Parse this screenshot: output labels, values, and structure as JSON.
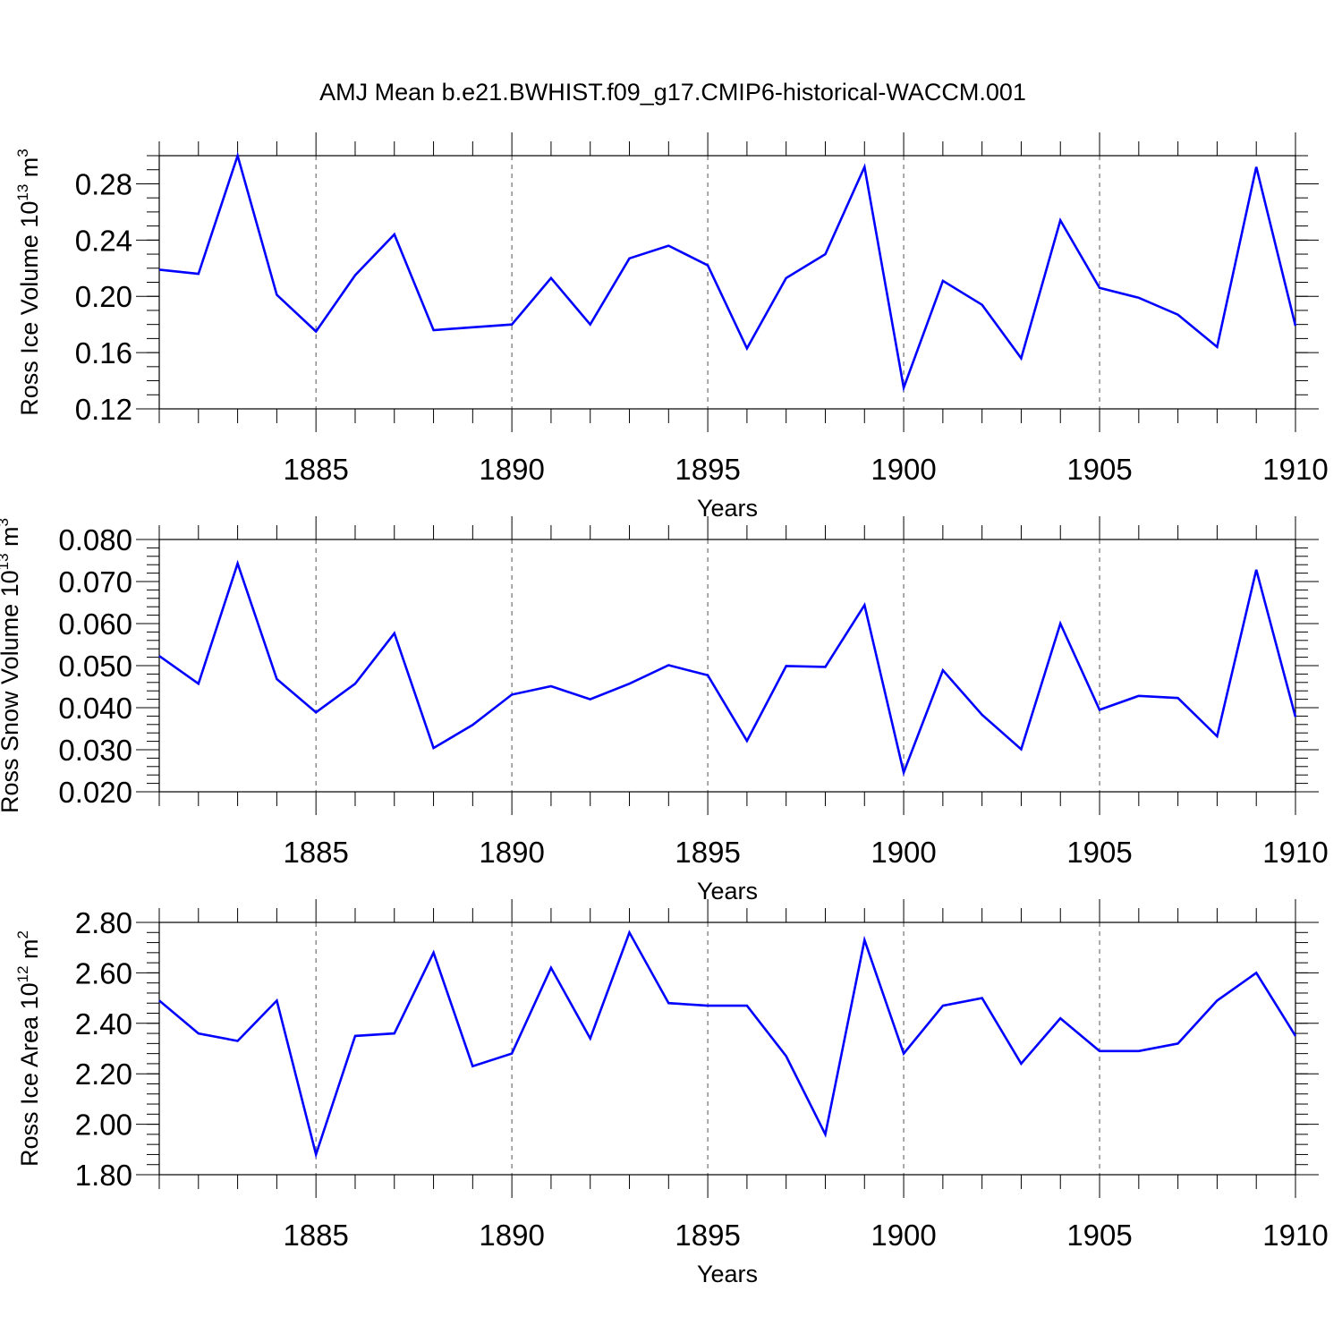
{
  "title": "AMJ Mean b.e21.BWHIST.f09_g17.CMIP6-historical-WACCM.001",
  "chart_data": [
    {
      "type": "line",
      "title": "",
      "xlabel": "Years",
      "ylabel": {
        "text": "Ross Ice Volume 10",
        "exponent": "13",
        "unit": " m",
        "unit_exponent": "3"
      },
      "xlim": [
        1881,
        1910
      ],
      "ylim": [
        0.12,
        0.3
      ],
      "xticks": [
        1885,
        1890,
        1895,
        1900,
        1905,
        1910
      ],
      "xtick_labels": [
        "1885",
        "1890",
        "1895",
        "1900",
        "1905",
        "1910"
      ],
      "yticks": [
        0.12,
        0.16,
        0.2,
        0.24,
        0.28
      ],
      "ytick_labels": [
        "0.12",
        "0.16",
        "0.20",
        "0.24",
        "0.28"
      ],
      "y_minor_step": 0.01,
      "grid": "vertical dashed at major x ticks",
      "color": "#0000ff",
      "x": [
        1881,
        1882,
        1883,
        1884,
        1885,
        1886,
        1887,
        1888,
        1889,
        1890,
        1891,
        1892,
        1893,
        1894,
        1895,
        1896,
        1897,
        1898,
        1899,
        1900,
        1901,
        1902,
        1903,
        1904,
        1905,
        1906,
        1907,
        1908,
        1909,
        1910
      ],
      "values": [
        0.219,
        0.216,
        0.3,
        0.201,
        0.175,
        0.215,
        0.244,
        0.176,
        0.178,
        0.18,
        0.213,
        0.18,
        0.227,
        0.236,
        0.222,
        0.163,
        0.213,
        0.23,
        0.292,
        0.135,
        0.211,
        0.194,
        0.156,
        0.254,
        0.206,
        0.199,
        0.187,
        0.164,
        0.292,
        0.179
      ]
    },
    {
      "type": "line",
      "title": "",
      "xlabel": "Years",
      "ylabel": {
        "text": "Ross Snow Volume 10",
        "exponent": "13",
        "unit": " m",
        "unit_exponent": "3"
      },
      "xlim": [
        1881,
        1910
      ],
      "ylim": [
        0.02,
        0.08
      ],
      "xticks": [
        1885,
        1890,
        1895,
        1900,
        1905,
        1910
      ],
      "xtick_labels": [
        "1885",
        "1890",
        "1895",
        "1900",
        "1905",
        "1910"
      ],
      "yticks": [
        0.02,
        0.03,
        0.04,
        0.05,
        0.06,
        0.07,
        0.08
      ],
      "ytick_labels": [
        "0.020",
        "0.030",
        "0.040",
        "0.050",
        "0.060",
        "0.070",
        "0.080"
      ],
      "y_minor_step": 0.002,
      "grid": "vertical dashed at major x ticks",
      "color": "#0000ff",
      "x": [
        1881,
        1882,
        1883,
        1884,
        1885,
        1886,
        1887,
        1888,
        1889,
        1890,
        1891,
        1892,
        1893,
        1894,
        1895,
        1896,
        1897,
        1898,
        1899,
        1900,
        1901,
        1902,
        1903,
        1904,
        1905,
        1906,
        1907,
        1908,
        1909,
        1910
      ],
      "values": [
        0.0523,
        0.0457,
        0.0743,
        0.0468,
        0.0389,
        0.0457,
        0.0577,
        0.0304,
        0.0359,
        0.0431,
        0.0451,
        0.042,
        0.0457,
        0.0501,
        0.0477,
        0.0321,
        0.0499,
        0.0497,
        0.0644,
        0.0246,
        0.0489,
        0.0383,
        0.0301,
        0.06,
        0.0395,
        0.0428,
        0.0423,
        0.0332,
        0.0728,
        0.0378
      ]
    },
    {
      "type": "line",
      "title": "",
      "xlabel": "Years",
      "ylabel": {
        "text": "Ross Ice Area 10",
        "exponent": "12",
        "unit": " m",
        "unit_exponent": "2"
      },
      "xlim": [
        1881,
        1910
      ],
      "ylim": [
        1.8,
        2.8
      ],
      "xticks": [
        1885,
        1890,
        1895,
        1900,
        1905,
        1910
      ],
      "xtick_labels": [
        "1885",
        "1890",
        "1895",
        "1900",
        "1905",
        "1910"
      ],
      "yticks": [
        1.8,
        2.0,
        2.2,
        2.4,
        2.6,
        2.8
      ],
      "ytick_labels": [
        "1.80",
        "2.00",
        "2.20",
        "2.40",
        "2.60",
        "2.80"
      ],
      "y_minor_step": 0.04,
      "grid": "vertical dashed at major x ticks",
      "color": "#0000ff",
      "x": [
        1881,
        1882,
        1883,
        1884,
        1885,
        1886,
        1887,
        1888,
        1889,
        1890,
        1891,
        1892,
        1893,
        1894,
        1895,
        1896,
        1897,
        1898,
        1899,
        1900,
        1901,
        1902,
        1903,
        1904,
        1905,
        1906,
        1907,
        1908,
        1909,
        1910
      ],
      "values": [
        2.49,
        2.36,
        2.33,
        2.49,
        1.88,
        2.35,
        2.36,
        2.68,
        2.23,
        2.28,
        2.62,
        2.34,
        2.76,
        2.48,
        2.47,
        2.47,
        2.27,
        1.96,
        2.73,
        2.28,
        2.47,
        2.5,
        2.24,
        2.42,
        2.29,
        2.29,
        2.32,
        2.49,
        2.6,
        2.35
      ]
    }
  ]
}
